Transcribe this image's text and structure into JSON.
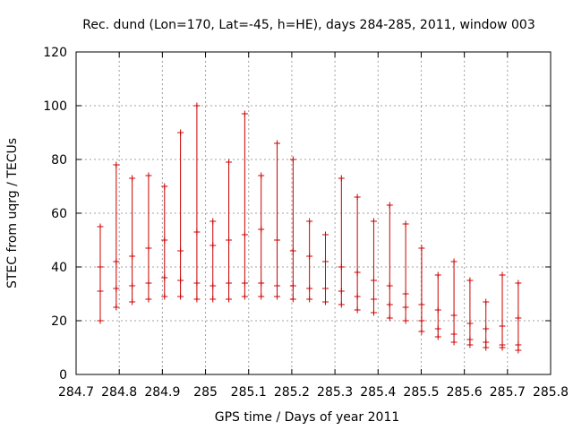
{
  "chart_data": {
    "type": "scatter",
    "title": "Rec. dund (Lon=170, Lat=-45, h=HE), days 284-285, 2011, window 003",
    "xlabel": "GPS time / Days of year 2011",
    "ylabel": "STEC from uqrg / TECUs",
    "xlim": [
      284.7,
      285.8
    ],
    "ylim": [
      0,
      120
    ],
    "xticks": [
      "284.7",
      "284.8",
      "284.9",
      "285",
      "285.1",
      "285.2",
      "285.3",
      "285.4",
      "285.5",
      "285.6",
      "285.7",
      "285.8"
    ],
    "yticks": [
      "0",
      "20",
      "40",
      "60",
      "80",
      "100",
      "120"
    ],
    "grid": true,
    "color": "#cc0000",
    "series": [
      {
        "x": [
          284.756,
          284.793,
          284.83,
          284.868,
          284.905,
          284.942,
          284.98,
          285.017,
          285.054,
          285.091,
          285.129,
          285.166,
          285.203,
          285.241,
          285.278,
          285.315,
          285.352,
          285.39,
          285.427,
          285.464,
          285.501,
          285.539,
          285.576,
          285.613,
          285.65,
          285.688,
          285.725
        ],
        "values": [
          20,
          25,
          27,
          28,
          29,
          29,
          28,
          28,
          28,
          29,
          29,
          29,
          28,
          28,
          27,
          26,
          24,
          23,
          21,
          20,
          16,
          14,
          12,
          11,
          10,
          10,
          9
        ]
      },
      {
        "x": [
          284.756,
          284.793,
          284.83,
          284.868,
          284.905,
          284.942,
          284.98,
          285.017,
          285.054,
          285.091,
          285.129,
          285.166,
          285.203,
          285.241,
          285.278,
          285.315,
          285.352,
          285.39,
          285.427,
          285.464,
          285.501,
          285.539,
          285.576,
          285.613,
          285.65,
          285.688,
          285.725
        ],
        "values": [
          31,
          32,
          33,
          34,
          36,
          35,
          34,
          33,
          34,
          34,
          34,
          33,
          33,
          32,
          32,
          31,
          29,
          28,
          26,
          25,
          20,
          17,
          15,
          13,
          12,
          11,
          11
        ]
      },
      {
        "x": [
          284.756,
          284.793,
          284.83,
          284.868,
          284.905,
          284.942,
          284.98,
          285.017,
          285.054,
          285.091,
          285.129,
          285.166,
          285.203,
          285.241,
          285.278,
          285.315,
          285.352,
          285.39,
          285.427,
          285.464,
          285.501,
          285.539,
          285.576,
          285.613,
          285.65,
          285.688,
          285.725
        ],
        "values": [
          40,
          42,
          44,
          47,
          50,
          46,
          53,
          48,
          50,
          52,
          54,
          50,
          46,
          44,
          42,
          40,
          38,
          35,
          33,
          30,
          26,
          24,
          22,
          19,
          17,
          18,
          21
        ]
      },
      {
        "x": [
          284.756,
          284.793,
          284.83,
          284.868,
          284.905,
          284.942,
          284.98,
          285.017,
          285.054,
          285.091,
          285.129,
          285.166,
          285.203,
          285.241,
          285.278,
          285.315,
          285.352,
          285.39,
          285.427,
          285.464,
          285.501,
          285.539,
          285.576,
          285.613,
          285.65,
          285.688,
          285.725
        ],
        "values": [
          55,
          78,
          73,
          74,
          70,
          90,
          100,
          57,
          79,
          97,
          74,
          86,
          80,
          57,
          52,
          73,
          66,
          57,
          63,
          56,
          47,
          37,
          42,
          35,
          27,
          37,
          34
        ]
      }
    ]
  }
}
